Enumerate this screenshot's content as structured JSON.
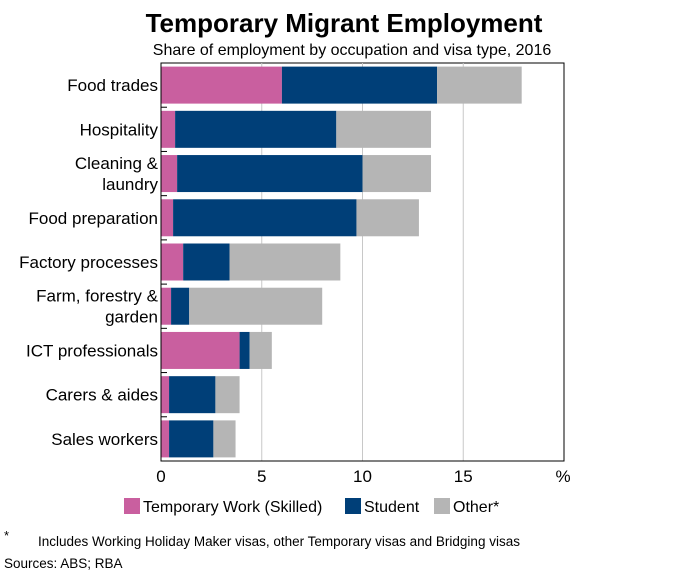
{
  "chart_data": {
    "type": "bar",
    "orientation": "horizontal",
    "stacked": true,
    "title": "Temporary Migrant Employment",
    "subtitle": "Share of employment by occupation and visa type, 2016",
    "unit": "%",
    "xlim": [
      0,
      20
    ],
    "xticks": [
      "0",
      "5",
      "10",
      "15"
    ],
    "grid": true,
    "legend_position": "bottom",
    "categories": [
      [
        "Food trades"
      ],
      [
        "Hospitality"
      ],
      [
        "Cleaning &",
        "laundry"
      ],
      [
        "Food preparation"
      ],
      [
        "Factory processes"
      ],
      [
        "Farm, forestry &",
        "garden"
      ],
      [
        "ICT professionals"
      ],
      [
        "Carers & aides"
      ],
      [
        "Sales workers"
      ]
    ],
    "series": [
      {
        "name": "Temporary Work (Skilled)",
        "color": "#c95f9f",
        "values": [
          6.0,
          0.7,
          0.8,
          0.6,
          1.1,
          0.5,
          3.9,
          0.4,
          0.4
        ]
      },
      {
        "name": "Student",
        "color": "#003f78",
        "values": [
          7.7,
          8.0,
          9.2,
          9.1,
          2.3,
          0.9,
          0.5,
          2.3,
          2.2
        ]
      },
      {
        "name": "Other*",
        "color": "#b5b5b5",
        "values": [
          4.2,
          4.7,
          3.4,
          3.1,
          5.5,
          6.6,
          1.1,
          1.2,
          1.1
        ]
      }
    ]
  },
  "footnote": {
    "marker": "*",
    "text": "Includes Working Holiday Maker visas, other Temporary visas and Bridging visas"
  },
  "sources": "Sources: ABS; RBA"
}
